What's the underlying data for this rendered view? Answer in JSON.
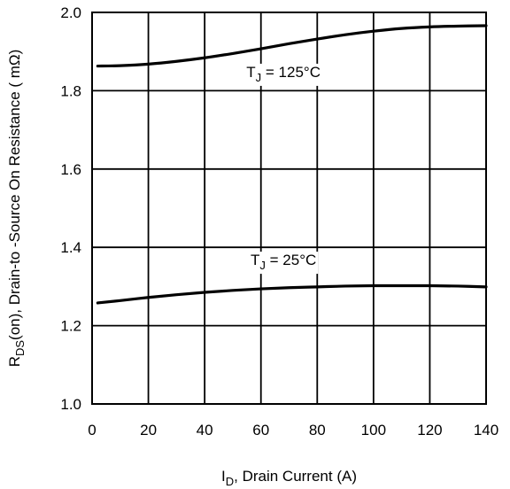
{
  "chart_data": {
    "type": "line",
    "title": "",
    "xlabel": {
      "main": "I",
      "sub": "D",
      "rest": ", Drain Current (A)"
    },
    "ylabel": {
      "main": "R",
      "sub": "DS",
      "rest": "(on),  Drain-to -Source On Resistance ( mΩ)"
    },
    "xlim": [
      0,
      140
    ],
    "ylim": [
      1.0,
      2.0
    ],
    "x_ticks": [
      "0",
      "20",
      "40",
      "60",
      "80",
      "100",
      "120",
      "140"
    ],
    "x_tick_values": [
      0,
      20,
      40,
      60,
      80,
      100,
      120,
      140
    ],
    "y_ticks": [
      "1.0",
      "1.2",
      "1.4",
      "1.6",
      "1.8",
      "2.0"
    ],
    "y_tick_values": [
      1.0,
      1.2,
      1.4,
      1.6,
      1.8,
      2.0
    ],
    "grid": true,
    "series": [
      {
        "label": {
          "main": "T",
          "sub": "J",
          "rest": " = 125°C"
        },
        "label_anchor": {
          "x": 68,
          "y": 1.835
        },
        "x": [
          2,
          10,
          20,
          30,
          40,
          50,
          60,
          70,
          80,
          90,
          100,
          110,
          120,
          130,
          140
        ],
        "values": [
          1.863,
          1.864,
          1.868,
          1.875,
          1.884,
          1.895,
          1.907,
          1.92,
          1.932,
          1.943,
          1.952,
          1.959,
          1.963,
          1.965,
          1.966
        ]
      },
      {
        "label": {
          "main": "T",
          "sub": "J",
          "rest": " = 25°C"
        },
        "label_anchor": {
          "x": 68,
          "y": 1.355
        },
        "x": [
          2,
          10,
          20,
          30,
          40,
          50,
          60,
          70,
          80,
          90,
          100,
          110,
          120,
          130,
          140
        ],
        "values": [
          1.258,
          1.264,
          1.272,
          1.279,
          1.285,
          1.29,
          1.294,
          1.297,
          1.299,
          1.301,
          1.302,
          1.302,
          1.302,
          1.301,
          1.299
        ]
      }
    ]
  }
}
